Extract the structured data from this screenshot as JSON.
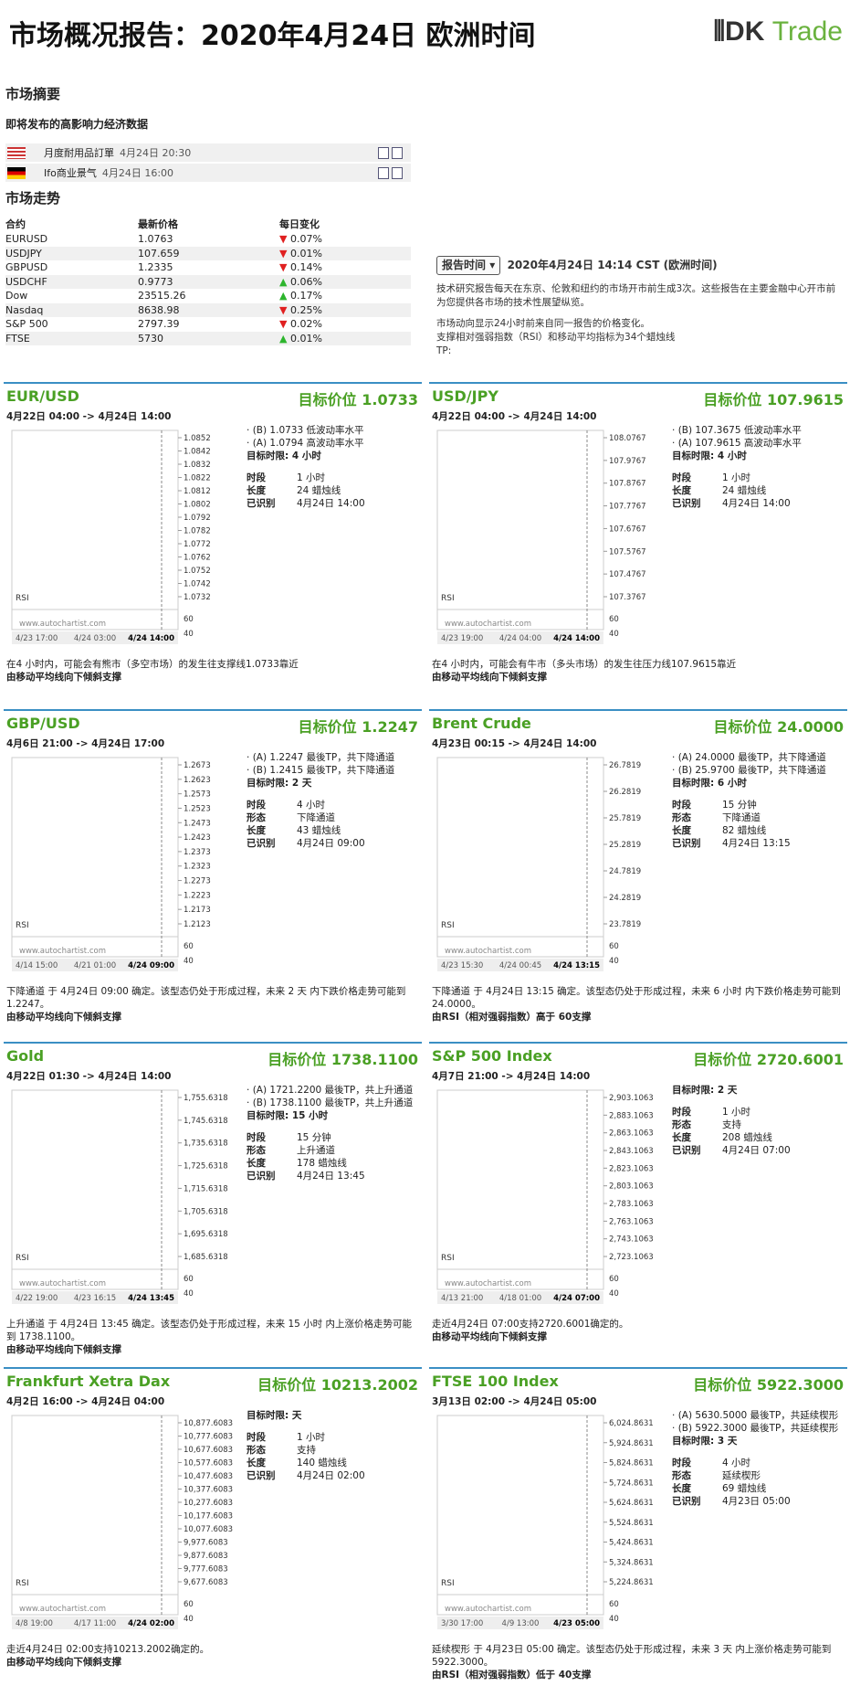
{
  "header": {
    "title": "市场概况报告：2020年4月24日 欧洲时间",
    "logo_main": "DK",
    "logo_accent": "Trade"
  },
  "summary": {
    "title": "市场摘要",
    "events_title": "即将发布的高影响力经济数据",
    "events": [
      {
        "flag": "us",
        "name": "月度耐用品訂單",
        "time": "4月24日 20:30"
      },
      {
        "flag": "de",
        "name": "Ifo商业景气",
        "time": "4月24日 16:00"
      }
    ],
    "moves_title": "市场走势",
    "columns": [
      "合约",
      "最新价格",
      "每日变化"
    ],
    "rows": [
      {
        "name": "EURUSD",
        "price": "1.0763",
        "direction": "down",
        "change": "0.07%"
      },
      {
        "name": "USDJPY",
        "price": "107.659",
        "direction": "down",
        "change": "0.01%"
      },
      {
        "name": "GBPUSD",
        "price": "1.2335",
        "direction": "down",
        "change": "0.14%"
      },
      {
        "name": "USDCHF",
        "price": "0.9773",
        "direction": "up",
        "change": "0.06%"
      },
      {
        "name": "Dow",
        "price": "23515.26",
        "direction": "up",
        "change": "0.17%"
      },
      {
        "name": "Nasdaq",
        "price": "8638.98",
        "direction": "down",
        "change": "0.25%"
      },
      {
        "name": "S&P 500",
        "price": "2797.39",
        "direction": "down",
        "change": "0.02%"
      },
      {
        "name": "FTSE",
        "price": "5730",
        "direction": "up",
        "change": "0.01%"
      }
    ]
  },
  "report_info": {
    "button": "报告时间",
    "time": "2020年4月24日 14:14 CST (欧洲时间)",
    "paragraphs": [
      "技术研究报告每天在东京、伦敦和纽约的市场开市前生成3次。这些报告在主要金融中心开市前为您提供各市场的技术性展望纵览。",
      "市场动向显示24小时前来自同一报告的价格变化。",
      "支撑相对强弱指数（RSI）和移动平均指标为34个蜡烛线",
      "TP:"
    ]
  },
  "chart_common": {
    "watermark": "www.autochartist.com",
    "rsi_label": "RSI",
    "rsi_ticks": [
      "60",
      "40"
    ]
  },
  "panels": [
    {
      "name": "EUR/USD",
      "target": "目标价位 1.0733",
      "range": "4月22日 04:00 -> 4月24日 14:00",
      "levels": [
        "(B) 1.0733 低波动率水平",
        "(A) 1.0794 高波动率水平"
      ],
      "limit": "目标时限: 4 小时",
      "details": [
        [
          "时段",
          "1 小时"
        ],
        [
          "长度",
          "24 蜡烛线"
        ],
        [
          "已识别",
          "4月24日 14:00"
        ]
      ],
      "yticks": [
        "1.0852",
        "1.0842",
        "1.0832",
        "1.0822",
        "1.0812",
        "1.0802",
        "1.0792",
        "1.0782",
        "1.0772",
        "1.0762",
        "1.0752",
        "1.0742",
        "1.0732"
      ],
      "xticks": [
        "4/23 17:00",
        "4/24 03:00",
        "4/24 14:00"
      ],
      "description": "在4 小时内，可能会有熊市（多空市场）的发生往支撑线1.0733靠近",
      "note": "由移动平均线向下倾斜支撑"
    },
    {
      "name": "USD/JPY",
      "target": "目标价位 107.9615",
      "range": "4月22日 04:00 -> 4月24日 14:00",
      "levels": [
        "(B) 107.3675 低波动率水平",
        "(A) 107.9615 高波动率水平"
      ],
      "limit": "目标时限: 4 小时",
      "details": [
        [
          "时段",
          "1 小时"
        ],
        [
          "长度",
          "24 蜡烛线"
        ],
        [
          "已识别",
          "4月24日 14:00"
        ]
      ],
      "yticks": [
        "108.0767",
        "107.9767",
        "107.8767",
        "107.7767",
        "107.6767",
        "107.5767",
        "107.4767",
        "107.3767"
      ],
      "xticks": [
        "4/23 19:00",
        "4/24 04:00",
        "4/24 14:00"
      ],
      "description": "在4 小时内，可能会有牛市（多头市场）的发生往压力线107.9615靠近",
      "note": "由移动平均线向下倾斜支撑"
    },
    {
      "name": "GBP/USD",
      "target": "目标价位 1.2247",
      "range": "4月6日 21:00 -> 4月24日 17:00",
      "levels": [
        "(A) 1.2247 最後TP，共下降通道",
        "(B) 1.2415 最後TP，共下降通道"
      ],
      "limit": "目标时限: 2 天",
      "details": [
        [
          "时段",
          "4 小时"
        ],
        [
          "形态",
          "下降通道"
        ],
        [
          "长度",
          "43 蜡烛线"
        ],
        [
          "已识别",
          "4月24日 09:00"
        ]
      ],
      "yticks": [
        "1.2673",
        "1.2623",
        "1.2573",
        "1.2523",
        "1.2473",
        "1.2423",
        "1.2373",
        "1.2323",
        "1.2273",
        "1.2223",
        "1.2173",
        "1.2123"
      ],
      "xticks": [
        "4/14 15:00",
        "4/21 01:00",
        "4/24 09:00"
      ],
      "description": "下降通道 于 4月24日 09:00 确定。该型态仍处于形成过程，未来 2 天 内下跌价格走势可能到 1.2247。",
      "note": "由移动平均线向下倾斜支撑"
    },
    {
      "name": "Brent Crude",
      "target": "目标价位 24.0000",
      "range": "4月23日 00:15 -> 4月24日 14:00",
      "levels": [
        "(A) 24.0000 最後TP，共下降通道",
        "(B) 25.9700 最後TP，共下降通道"
      ],
      "limit": "目标时限: 6 小时",
      "details": [
        [
          "时段",
          "15 分钟"
        ],
        [
          "形态",
          "下降通道"
        ],
        [
          "长度",
          "82 蜡烛线"
        ],
        [
          "已识别",
          "4月24日 13:15"
        ]
      ],
      "yticks": [
        "26.7819",
        "26.2819",
        "25.7819",
        "25.2819",
        "24.7819",
        "24.2819",
        "23.7819"
      ],
      "xticks": [
        "4/23 15:30",
        "4/24 00:45",
        "4/24 13:15"
      ],
      "description": "下降通道 于 4月24日 13:15 确定。该型态仍处于形成过程，未来 6 小时 内下跌价格走势可能到 24.0000。",
      "note": "由RSI（相对强弱指数）高于 60支撑"
    },
    {
      "name": "Gold",
      "target": "目标价位 1738.1100",
      "range": "4月22日 01:30 -> 4月24日 14:00",
      "levels": [
        "(A) 1721.2200 最後TP，共上升通道",
        "(B) 1738.1100 最後TP，共上升通道"
      ],
      "limit": "目标时限: 15 小时",
      "details": [
        [
          "时段",
          "15 分钟"
        ],
        [
          "形态",
          "上升通道"
        ],
        [
          "长度",
          "178 蜡烛线"
        ],
        [
          "已识别",
          "4月24日 13:45"
        ]
      ],
      "yticks": [
        "1,755.6318",
        "1,745.6318",
        "1,735.6318",
        "1,725.6318",
        "1,715.6318",
        "1,705.6318",
        "1,695.6318",
        "1,685.6318"
      ],
      "xticks": [
        "4/22 19:00",
        "4/23 16:15",
        "4/24 13:45"
      ],
      "description": "上升通道 于 4月24日 13:45 确定。该型态仍处于形成过程，未来 15 小时 内上涨价格走势可能到 1738.1100。",
      "note": "由移动平均线向下倾斜支撑"
    },
    {
      "name": "S&P 500 Index",
      "target": "目标价位 2720.6001",
      "range": "4月7日 21:00 -> 4月24日 14:00",
      "levels": [],
      "limit": "目标时限: 2 天",
      "details": [
        [
          "时段",
          "1 小时"
        ],
        [
          "形态",
          "支持"
        ],
        [
          "长度",
          "208 蜡烛线"
        ],
        [
          "已识别",
          "4月24日 07:00"
        ]
      ],
      "yticks": [
        "2,903.1063",
        "2,883.1063",
        "2,863.1063",
        "2,843.1063",
        "2,823.1063",
        "2,803.1063",
        "2,783.1063",
        "2,763.1063",
        "2,743.1063",
        "2,723.1063"
      ],
      "xticks": [
        "4/13 21:00",
        "4/18 01:00",
        "4/24 07:00"
      ],
      "description": "走近4月24日 07:00支持2720.6001确定的。",
      "note": "由移动平均线向下倾斜支撑"
    },
    {
      "name": "Frankfurt Xetra Dax",
      "target": "目标价位 10213.2002",
      "range": "4月2日 16:00 -> 4月24日 04:00",
      "levels": [],
      "limit": "目标时限: 天",
      "details": [
        [
          "时段",
          "1 小时"
        ],
        [
          "形态",
          "支持"
        ],
        [
          "长度",
          "140 蜡烛线"
        ],
        [
          "已识别",
          "4月24日 02:00"
        ]
      ],
      "yticks": [
        "10,877.6083",
        "10,777.6083",
        "10,677.6083",
        "10,577.6083",
        "10,477.6083",
        "10,377.6083",
        "10,277.6083",
        "10,177.6083",
        "10,077.6083",
        "9,977.6083",
        "9,877.6083",
        "9,777.6083",
        "9,677.6083"
      ],
      "xticks": [
        "4/8 19:00",
        "4/17 11:00",
        "4/24 02:00"
      ],
      "description": "走近4月24日 02:00支持10213.2002确定的。",
      "note": "由移动平均线向下倾斜支撑"
    },
    {
      "name": "FTSE 100 Index",
      "target": "目标价位 5922.3000",
      "range": "3月13日 02:00 -> 4月24日 05:00",
      "levels": [
        "(A) 5630.5000 最後TP，共延续楔形",
        "(B) 5922.3000 最後TP，共延续楔形"
      ],
      "limit": "目标时限: 3 天",
      "details": [
        [
          "时段",
          "4 小时"
        ],
        [
          "形态",
          "延续楔形"
        ],
        [
          "长度",
          "69 蜡烛线"
        ],
        [
          "已识别",
          "4月23日 05:00"
        ]
      ],
      "yticks": [
        "6,024.8631",
        "5,924.8631",
        "5,824.8631",
        "5,724.8631",
        "5,624.8631",
        "5,524.8631",
        "5,424.8631",
        "5,324.8631",
        "5,224.8631"
      ],
      "xticks": [
        "3/30 17:00",
        "4/9 13:00",
        "4/23 05:00"
      ],
      "description": "延续楔形 于 4月23日 05:00 确定。该型态仍处于形成过程，未来 3 天 内上涨价格走势可能到 5922.3000。",
      "note": "由RSI（相对强弱指数）低于 40支撑"
    }
  ]
}
